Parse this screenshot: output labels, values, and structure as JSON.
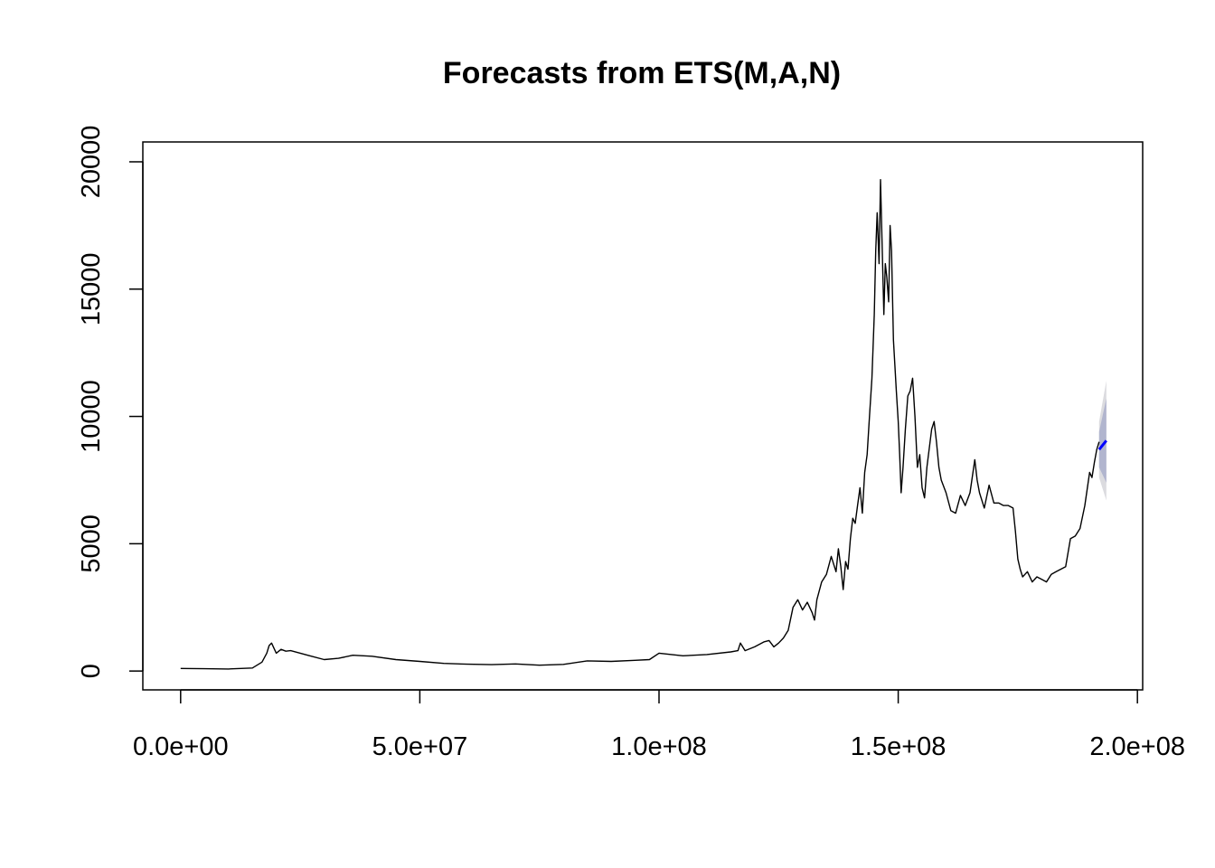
{
  "chart_data": {
    "type": "line",
    "title": "Forecasts from ETS(M,A,N)",
    "xlabel": "",
    "ylabel": "",
    "xlim": [
      -7900000,
      201100000
    ],
    "ylim": [
      -740,
      20780
    ],
    "x_ticks": [
      0,
      50000000,
      100000000,
      150000000,
      200000000
    ],
    "x_tick_labels": [
      "0.0e+00",
      "5.0e+07",
      "1.0e+08",
      "1.5e+08",
      "2.0e+08"
    ],
    "y_ticks": [
      0,
      5000,
      10000,
      15000,
      20000
    ],
    "y_tick_labels": [
      "0",
      "5000",
      "10000",
      "15000",
      "20000"
    ],
    "grid": false,
    "legend": "none",
    "series": [
      {
        "role": "observed",
        "color": "#000000",
        "x": [
          0,
          5000000,
          10000000,
          15000000,
          17000000,
          18000000,
          18500000,
          19000000,
          19500000,
          20000000,
          21000000,
          22000000,
          23000000,
          25000000,
          27000000,
          30000000,
          33000000,
          36000000,
          40000000,
          45000000,
          50000000,
          55000000,
          60000000,
          65000000,
          70000000,
          75000000,
          80000000,
          85000000,
          90000000,
          95000000,
          98000000,
          100000000,
          105000000,
          110000000,
          115000000,
          116500000,
          117000000,
          118000000,
          120000000,
          122000000,
          123000000,
          124000000,
          125000000,
          126000000,
          127000000,
          128000000,
          129000000,
          130000000,
          131000000,
          132000000,
          132500000,
          133000000,
          134000000,
          135000000,
          136000000,
          137000000,
          137500000,
          138000000,
          138500000,
          139000000,
          139500000,
          140000000,
          140500000,
          141000000,
          141500000,
          142000000,
          142500000,
          143000000,
          143500000,
          144000000,
          144500000,
          145000000,
          145300000,
          145600000,
          146000000,
          146300000,
          146600000,
          147000000,
          147300000,
          147600000,
          148000000,
          148300000,
          148600000,
          149000000,
          149300000,
          149600000,
          150000000,
          150300000,
          150600000,
          151000000,
          151500000,
          152000000,
          152500000,
          153000000,
          153500000,
          154000000,
          154500000,
          155000000,
          155500000,
          156000000,
          157000000,
          157500000,
          158000000,
          158500000,
          159000000,
          160000000,
          161000000,
          162000000,
          163000000,
          164000000,
          165000000,
          166000000,
          166500000,
          167000000,
          168000000,
          169000000,
          170000000,
          171000000,
          172000000,
          173000000,
          174000000,
          174500000,
          175000000,
          175500000,
          176000000,
          177000000,
          178000000,
          179000000,
          180000000,
          181000000,
          182000000,
          183000000,
          184000000,
          185000000,
          186000000,
          187000000,
          188000000,
          189000000,
          190000000,
          190500000,
          191000000,
          191500000,
          192000000
        ],
        "y": [
          100,
          90,
          80,
          120,
          350,
          700,
          1000,
          1100,
          900,
          700,
          850,
          780,
          800,
          700,
          600,
          450,
          500,
          620,
          580,
          450,
          380,
          300,
          270,
          250,
          280,
          230,
          260,
          400,
          380,
          420,
          450,
          700,
          600,
          650,
          750,
          800,
          1100,
          800,
          950,
          1150,
          1200,
          950,
          1100,
          1300,
          1600,
          2500,
          2800,
          2400,
          2700,
          2300,
          2000,
          2800,
          3500,
          3800,
          4500,
          3900,
          4800,
          4100,
          3200,
          4300,
          4000,
          5200,
          6000,
          5800,
          6500,
          7200,
          6200,
          7800,
          8500,
          10000,
          11500,
          14000,
          16500,
          18000,
          16000,
          19300,
          17000,
          14000,
          16000,
          15500,
          14500,
          17500,
          16500,
          13000,
          12000,
          11000,
          9800,
          8500,
          7000,
          8000,
          9500,
          10800,
          11000,
          11500,
          10000,
          8000,
          8500,
          7200,
          6800,
          8000,
          9500,
          9800,
          9000,
          8000,
          7500,
          7000,
          6300,
          6200,
          6900,
          6500,
          7000,
          8300,
          7500,
          7000,
          6400,
          7300,
          6600,
          6600,
          6500,
          6500,
          6400,
          5500,
          4400,
          4000,
          3700,
          3900,
          3500,
          3700,
          3600,
          3500,
          3800,
          3900,
          4000,
          4100,
          5200,
          5300,
          5600,
          6500,
          7800,
          7600,
          8200,
          8700,
          9000
        ]
      },
      {
        "role": "forecast",
        "color": "#0000ff",
        "x": [
          192000000,
          193500000
        ],
        "y": [
          8700,
          9050
        ]
      }
    ],
    "intervals": [
      {
        "level": "80%",
        "color": "#b1b5ce",
        "x": [
          192000000,
          193500000
        ],
        "lower": [
          8000,
          7400
        ],
        "upper": [
          9400,
          10700
        ]
      },
      {
        "level": "95%",
        "color": "#dbdbdf",
        "x": [
          192000000,
          193500000
        ],
        "lower": [
          7600,
          6700
        ],
        "upper": [
          9800,
          11400
        ]
      }
    ]
  }
}
